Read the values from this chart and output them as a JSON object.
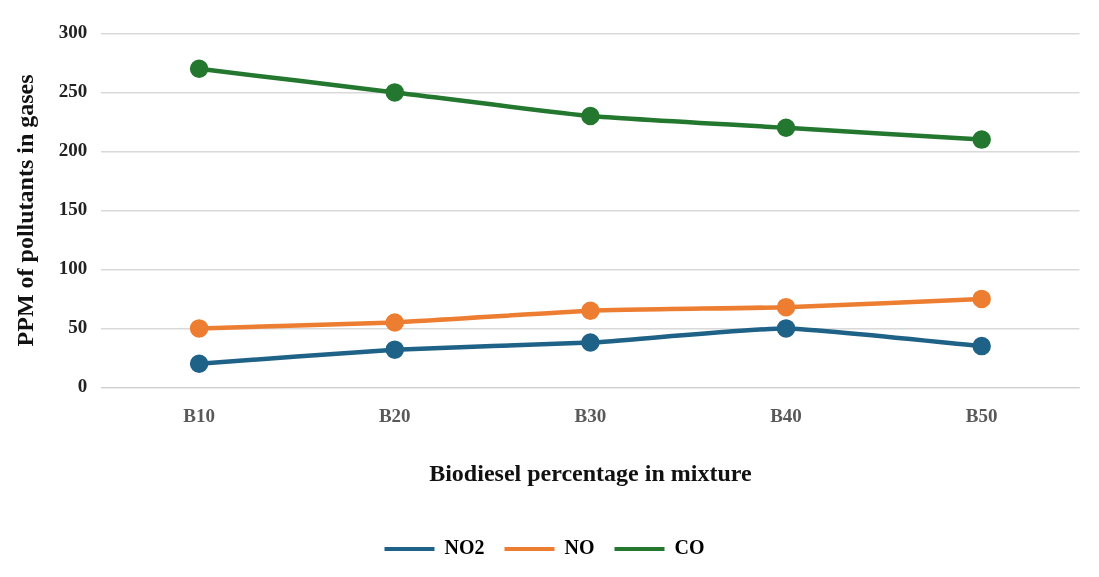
{
  "chart_data": {
    "type": "line",
    "xlabel": "Biodiesel percentage in mixture",
    "ylabel": "PPM of pollutants in gases",
    "categories": [
      "B10",
      "B20",
      "B30",
      "B40",
      "B50"
    ],
    "series": [
      {
        "name": "NO2",
        "color": "#1f6287",
        "values": [
          20,
          32,
          38,
          50,
          35
        ]
      },
      {
        "name": "NO",
        "color": "#ed7d31",
        "values": [
          50,
          55,
          65,
          68,
          75
        ]
      },
      {
        "name": "CO",
        "color": "#23772e",
        "values": [
          270,
          250,
          230,
          220,
          210
        ]
      }
    ],
    "ylim": [
      0,
      300
    ],
    "yticks": [
      0,
      50,
      100,
      150,
      200,
      250,
      300
    ],
    "grid": "y",
    "legend": "bottom",
    "marker": "circle",
    "line_style": "solid"
  }
}
